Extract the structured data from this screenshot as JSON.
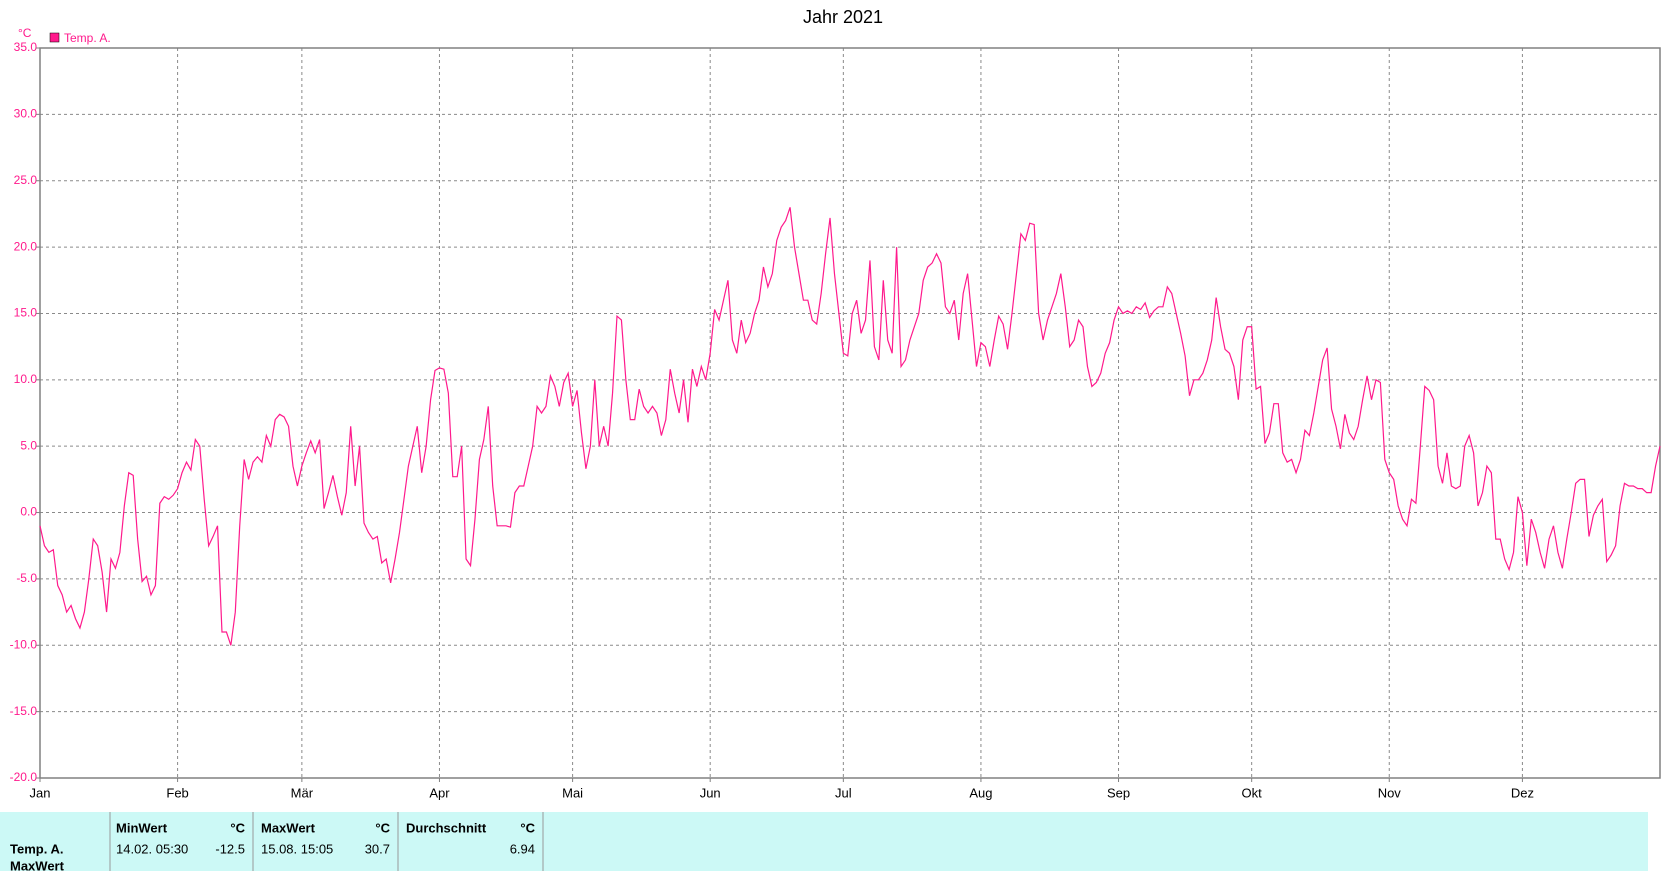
{
  "chart_data": {
    "type": "line",
    "title": "Jahr 2021",
    "y_unit": "°C",
    "x": [
      0,
      1,
      2,
      3,
      4,
      5,
      6,
      7,
      8,
      9,
      10,
      11,
      12,
      13,
      14,
      15,
      16,
      17,
      18,
      19,
      20,
      21,
      22,
      23,
      24,
      25,
      26,
      27,
      28,
      29,
      30,
      31,
      32,
      33,
      34,
      35,
      36,
      37,
      38,
      39,
      40,
      41,
      42,
      43,
      44,
      45,
      46,
      47,
      48,
      49,
      50,
      51,
      52,
      53,
      54,
      55,
      56,
      57,
      58,
      59,
      60,
      61,
      62,
      63,
      64,
      65,
      66,
      67,
      68,
      69,
      70,
      71,
      72,
      73,
      74,
      75,
      76,
      77,
      78,
      79,
      80,
      81,
      82,
      83,
      84,
      85,
      86,
      87,
      88,
      89,
      90,
      91,
      92,
      93,
      94,
      95,
      96,
      97,
      98,
      99,
      100,
      101,
      102,
      103,
      104,
      105,
      106,
      107,
      108,
      109,
      110,
      111,
      112,
      113,
      114,
      115,
      116,
      117,
      118,
      119,
      120,
      121,
      122,
      123,
      124,
      125,
      126,
      127,
      128,
      129,
      130,
      131,
      132,
      133,
      134,
      135,
      136,
      137,
      138,
      139,
      140,
      141,
      142,
      143,
      144,
      145,
      146,
      147,
      148,
      149,
      150,
      151,
      152,
      153,
      154,
      155,
      156,
      157,
      158,
      159,
      160,
      161,
      162,
      163,
      164,
      165,
      166,
      167,
      168,
      169,
      170,
      171,
      172,
      173,
      174,
      175,
      176,
      177,
      178,
      179,
      180,
      181,
      182,
      183,
      184,
      185,
      186,
      187,
      188,
      189,
      190,
      191,
      192,
      193,
      194,
      195,
      196,
      197,
      198,
      199,
      200,
      201,
      202,
      203,
      204,
      205,
      206,
      207,
      208,
      209,
      210,
      211,
      212,
      213,
      214,
      215,
      216,
      217,
      218,
      219,
      220,
      221,
      222,
      223,
      224,
      225,
      226,
      227,
      228,
      229,
      230,
      231,
      232,
      233,
      234,
      235,
      236,
      237,
      238,
      239,
      240,
      241,
      242,
      243,
      244,
      245,
      246,
      247,
      248,
      249,
      250,
      251,
      252,
      253,
      254,
      255,
      256,
      257,
      258,
      259,
      260,
      261,
      262,
      263,
      264,
      265,
      266,
      267,
      268,
      269,
      270,
      271,
      272,
      273,
      274,
      275,
      276,
      277,
      278,
      279,
      280,
      281,
      282,
      283,
      284,
      285,
      286,
      287,
      288,
      289,
      290,
      291,
      292,
      293,
      294,
      295,
      296,
      297,
      298,
      299,
      300,
      301,
      302,
      303,
      304,
      305,
      306,
      307,
      308,
      309,
      310,
      311,
      312,
      313,
      314,
      315,
      316,
      317,
      318,
      319,
      320,
      321,
      322,
      323,
      324,
      325,
      326,
      327,
      328,
      329,
      330,
      331,
      332,
      333,
      334,
      335,
      336,
      337,
      338,
      339,
      340,
      341,
      342,
      343,
      344,
      345,
      346,
      347,
      348,
      349,
      350,
      351,
      352,
      353,
      354,
      355,
      356,
      357,
      358,
      359,
      360,
      361,
      362,
      363,
      364,
      365
    ],
    "series": [
      {
        "name": "Temp. A.",
        "color": "#ff1a8c",
        "values": [
          -1,
          -2.5,
          -3,
          -2.8,
          -5.5,
          -6.2,
          -7.5,
          -7,
          -8,
          -8.7,
          -7.5,
          -5,
          -2,
          -2.5,
          -4.5,
          -7.5,
          -3.5,
          -4.2,
          -3,
          0.5,
          3,
          2.8,
          -2,
          -5.2,
          -4.8,
          -6.2,
          -5.5,
          0.7,
          1.2,
          1,
          1.3,
          1.8,
          3,
          3.8,
          3.2,
          5.5,
          5,
          1,
          -2.5,
          -1.8,
          -1,
          -9,
          -9,
          -10,
          -7.5,
          -1,
          4,
          2.5,
          3.8,
          4.2,
          3.8,
          5.8,
          5,
          7,
          7.4,
          7.2,
          6.5,
          3.5,
          2,
          3.5,
          4.5,
          5.4,
          4.5,
          5.5,
          0.3,
          1.5,
          2.8,
          1.2,
          -0.2,
          1.5,
          6.5,
          2,
          5,
          -0.8,
          -1.5,
          -2,
          -1.8,
          -3.8,
          -3.5,
          -5.3,
          -3.5,
          -1.5,
          1,
          3.5,
          5,
          6.5,
          3,
          5,
          8.5,
          10.7,
          10.9,
          10.8,
          9,
          2.7,
          2.7,
          5,
          -3.5,
          -4,
          -0.5,
          4,
          5.5,
          8,
          2,
          -1,
          -1,
          -1,
          -1.1,
          1.5,
          2,
          2,
          3.5,
          5,
          8,
          7.5,
          8,
          10.3,
          9.5,
          8,
          9.8,
          10.5,
          8,
          9.2,
          6,
          3.3,
          5,
          10,
          5,
          6.5,
          5,
          9,
          14.8,
          14.5,
          10,
          7,
          7,
          9.3,
          8,
          7.5,
          8,
          7.5,
          5.8,
          7,
          10.8,
          9,
          7.5,
          10,
          6.8,
          10.8,
          9.5,
          11,
          10,
          12,
          15.3,
          14.5,
          16,
          17.5,
          13,
          12,
          14.5,
          12.8,
          13.5,
          15,
          16,
          18.5,
          17,
          18,
          20.5,
          21.5,
          22,
          23,
          20,
          18,
          16,
          16,
          14.5,
          14.2,
          16.5,
          19.5,
          22.2,
          18,
          15,
          12,
          11.8,
          15,
          16,
          13.5,
          14.5,
          19,
          12.5,
          11.5,
          17.5,
          13,
          12,
          20,
          11,
          11.5,
          13,
          14,
          15,
          17.5,
          18.5,
          18.8,
          19.5,
          18.8,
          15.5,
          15,
          16,
          13,
          16.5,
          18,
          14.5,
          11,
          12.8,
          12.5,
          11,
          13,
          14.8,
          14.2,
          12.3,
          15,
          18,
          21,
          20.5,
          21.8,
          21.7,
          15,
          13,
          14.5,
          15.5,
          16.5,
          18,
          15.5,
          12.5,
          13,
          14.5,
          14,
          11,
          9.5,
          9.8,
          10.5,
          12,
          12.8,
          14.5,
          15.5,
          15,
          15.2,
          15,
          15.5,
          15.3,
          15.8,
          14.7,
          15.2,
          15.5,
          15.5,
          17,
          16.5,
          15,
          13.5,
          11.8,
          8.8,
          10,
          10,
          10.5,
          11.5,
          13,
          16.2,
          14,
          12.3,
          12,
          11,
          8.5,
          13,
          14,
          14,
          9.3,
          9.5,
          5.2,
          6,
          8.2,
          8.2,
          4.5,
          3.8,
          4,
          3,
          4,
          6.2,
          5.8,
          7.5,
          9.5,
          11.5,
          12.4,
          7.8,
          6.5,
          4.8,
          7.4,
          6,
          5.5,
          6.5,
          8.5,
          10.3,
          8.5,
          10,
          9.8,
          4,
          3,
          2.5,
          0.5,
          -0.5,
          -1,
          1,
          0.7,
          5,
          9.5,
          9.2,
          8.5,
          3.5,
          2.2,
          4.5,
          2,
          1.8,
          2,
          5,
          5.8,
          4.5,
          0.5,
          1.5,
          3.5,
          3,
          -2,
          -2,
          -3.5,
          -4.3,
          -3,
          1.2,
          0,
          -4,
          -0.5,
          -1.5,
          -3,
          -4.2,
          -2,
          -1,
          -3,
          -4.2,
          -2,
          0,
          2.2,
          2.5,
          2.5,
          -1.8,
          -0.2,
          0.5,
          1,
          -3.7,
          -3.2,
          -2.5,
          0.5,
          2.2,
          2,
          2,
          1.8,
          1.8,
          1.5,
          1.5,
          3.5,
          5
        ]
      }
    ],
    "xlim": [
      0,
      365
    ],
    "xticks": [
      {
        "value": 0,
        "label": "Jan"
      },
      {
        "value": 31,
        "label": "Feb"
      },
      {
        "value": 59,
        "label": "Mär"
      },
      {
        "value": 90,
        "label": "Apr"
      },
      {
        "value": 120,
        "label": "Mai"
      },
      {
        "value": 151,
        "label": "Jun"
      },
      {
        "value": 181,
        "label": "Jul"
      },
      {
        "value": 212,
        "label": "Aug"
      },
      {
        "value": 243,
        "label": "Sep"
      },
      {
        "value": 273,
        "label": "Okt"
      },
      {
        "value": 304,
        "label": "Nov"
      },
      {
        "value": 334,
        "label": "Dez"
      }
    ],
    "ylim": [
      -20,
      35
    ],
    "yticks": [
      {
        "value": -20,
        "label": "-20.0"
      },
      {
        "value": -15,
        "label": "-15.0"
      },
      {
        "value": -10,
        "label": "-10.0"
      },
      {
        "value": -5,
        "label": "-5.0"
      },
      {
        "value": 0,
        "label": "0.0"
      },
      {
        "value": 5,
        "label": "5.0"
      },
      {
        "value": 10,
        "label": "10.0"
      },
      {
        "value": 15,
        "label": "15.0"
      },
      {
        "value": 20,
        "label": "20.0"
      },
      {
        "value": 25,
        "label": "25.0"
      },
      {
        "value": 30,
        "label": "30.0"
      },
      {
        "value": 35,
        "label": "35.0"
      }
    ],
    "grid": true,
    "legend": "top-left"
  },
  "table": {
    "headers": [
      "MinWert",
      "°C",
      "MaxWert",
      "°C",
      "Durchschnitt",
      "°C"
    ],
    "row": {
      "label": "Temp. A.",
      "min_time": "14.02. 05:30",
      "min": -12.5,
      "max_time": "15.08. 15:05",
      "max": 30.7,
      "avg": 6.94
    },
    "next_row_label": "MaxWert"
  }
}
